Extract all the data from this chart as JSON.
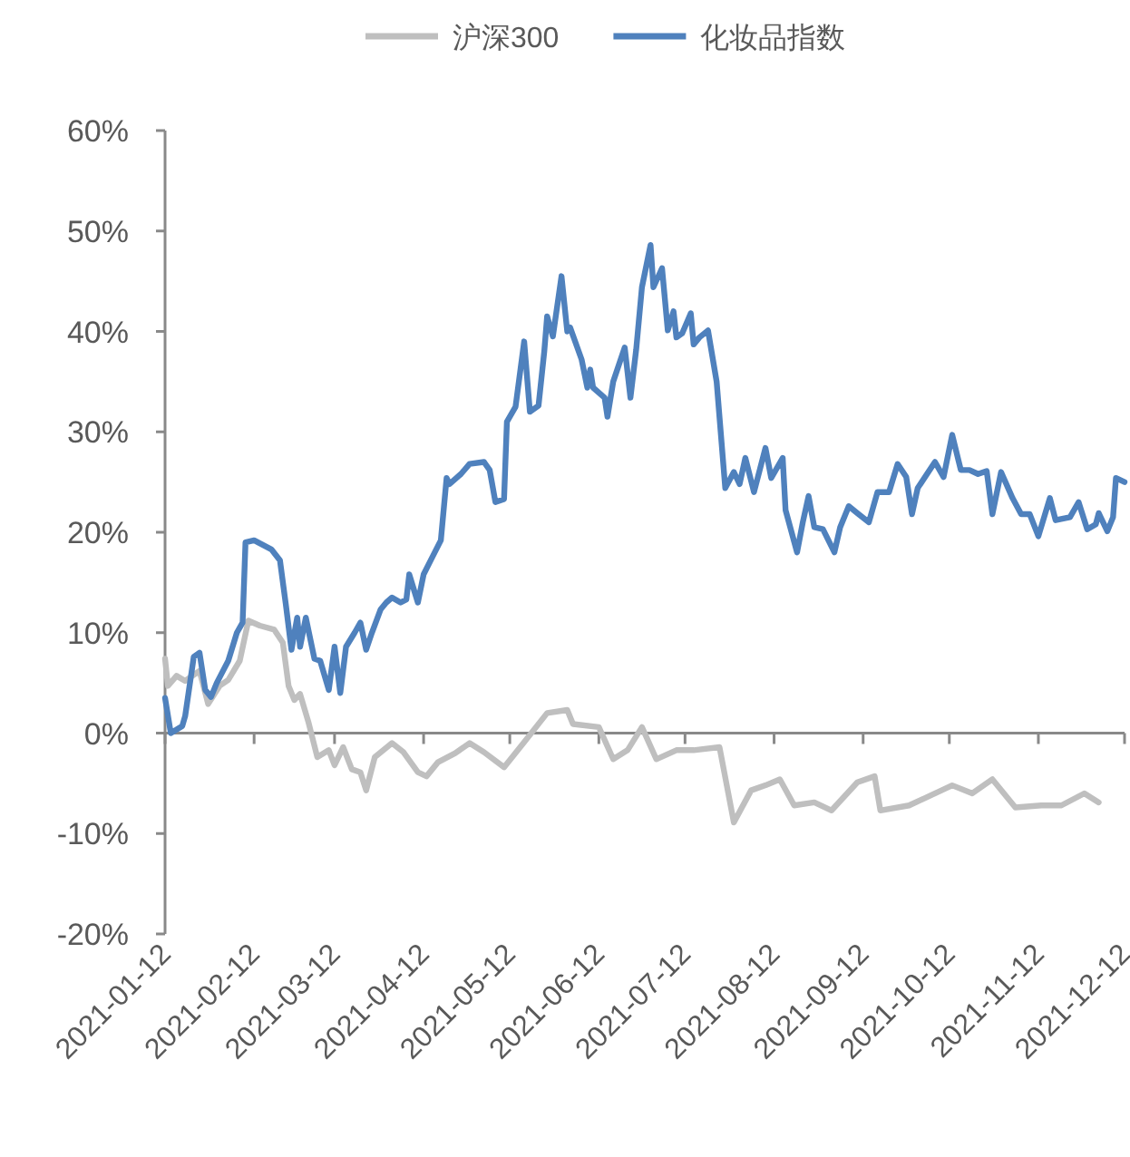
{
  "chart_data": {
    "type": "line",
    "legend": "top",
    "xlim": [
      "2021-01-12",
      "2021-12-12"
    ],
    "ylim": [
      -20,
      60
    ],
    "yticks": [
      {
        "value": -20,
        "label": "-20%"
      },
      {
        "value": -10,
        "label": "-10%"
      },
      {
        "value": 0,
        "label": "0%"
      },
      {
        "value": 10,
        "label": "10%"
      },
      {
        "value": 20,
        "label": "20%"
      },
      {
        "value": 30,
        "label": "30%"
      },
      {
        "value": 40,
        "label": "40%"
      },
      {
        "value": 50,
        "label": "50%"
      },
      {
        "value": 60,
        "label": "60%"
      }
    ],
    "xticks": [
      {
        "value": "2021-01-12",
        "label": "2021-01-12"
      },
      {
        "value": "2021-02-12",
        "label": "2021-02-12"
      },
      {
        "value": "2021-03-12",
        "label": "2021-03-12"
      },
      {
        "value": "2021-04-12",
        "label": "2021-04-12"
      },
      {
        "value": "2021-05-12",
        "label": "2021-05-12"
      },
      {
        "value": "2021-06-12",
        "label": "2021-06-12"
      },
      {
        "value": "2021-07-12",
        "label": "2021-07-12"
      },
      {
        "value": "2021-08-12",
        "label": "2021-08-12"
      },
      {
        "value": "2021-09-12",
        "label": "2021-09-12"
      },
      {
        "value": "2021-10-12",
        "label": "2021-10-12"
      },
      {
        "value": "2021-11-12",
        "label": "2021-11-12"
      },
      {
        "value": "2021-12-12",
        "label": "2021-12-12"
      }
    ],
    "series": [
      {
        "name": "沪深300",
        "color": "#bfbfbf",
        "x": [
          "2021-01-12",
          "2021-01-13",
          "2021-01-16",
          "2021-01-19",
          "2021-01-24",
          "2021-01-27",
          "2021-01-31",
          "2021-02-03",
          "2021-02-07",
          "2021-02-10",
          "2021-02-14",
          "2021-02-19",
          "2021-02-22",
          "2021-02-24",
          "2021-02-26",
          "2021-02-28",
          "2021-03-03",
          "2021-03-06",
          "2021-03-10",
          "2021-03-12",
          "2021-03-15",
          "2021-03-18",
          "2021-03-21",
          "2021-03-23",
          "2021-03-26",
          "2021-04-01",
          "2021-04-05",
          "2021-04-10",
          "2021-04-13",
          "2021-04-17",
          "2021-04-23",
          "2021-04-28",
          "2021-05-03",
          "2021-05-10",
          "2021-05-17",
          "2021-05-25",
          "2021-06-01",
          "2021-06-03",
          "2021-06-12",
          "2021-06-17",
          "2021-06-22",
          "2021-06-27",
          "2021-07-02",
          "2021-07-09",
          "2021-07-15",
          "2021-07-24",
          "2021-07-29",
          "2021-08-04",
          "2021-08-09",
          "2021-08-14",
          "2021-08-19",
          "2021-08-26",
          "2021-09-01",
          "2021-09-10",
          "2021-09-16",
          "2021-09-18",
          "2021-09-28",
          "2021-10-13",
          "2021-10-20",
          "2021-10-27",
          "2021-11-04",
          "2021-11-13",
          "2021-11-20",
          "2021-11-28",
          "2021-12-03"
        ],
        "values": [
          7.4,
          4.7,
          5.7,
          5.2,
          6.2,
          2.9,
          4.7,
          5.3,
          7.2,
          11.2,
          10.7,
          10.3,
          9,
          4.7,
          3.3,
          3.9,
          1,
          -2.4,
          -1.7,
          -3.2,
          -1.4,
          -3.6,
          -3.9,
          -5.7,
          -2.4,
          -1,
          -1.9,
          -3.9,
          -4.3,
          -2.9,
          -2,
          -1,
          -1.9,
          -3.4,
          -0.9,
          2,
          2.3,
          0.9,
          0.6,
          -2.6,
          -1.7,
          0.6,
          -2.6,
          -1.7,
          -1.7,
          -1.4,
          -8.9,
          -5.7,
          -5.2,
          -4.6,
          -7.2,
          -6.9,
          -7.7,
          -4.9,
          -4.3,
          -7.7,
          -7.2,
          -5.2,
          -6,
          -4.6,
          -7.4,
          -7.2,
          -7.2,
          -6,
          -6.9
        ]
      },
      {
        "name": "化妆品指数",
        "color": "#4f81bd",
        "x": [
          "2021-01-12",
          "2021-01-14",
          "2021-01-18",
          "2021-01-19",
          "2021-01-22",
          "2021-01-24",
          "2021-01-26",
          "2021-01-28",
          "2021-01-30",
          "2021-02-03",
          "2021-02-06",
          "2021-02-08",
          "2021-02-09",
          "2021-02-12",
          "2021-02-18",
          "2021-02-21",
          "2021-02-23",
          "2021-02-25",
          "2021-02-27",
          "2021-02-28",
          "2021-03-02",
          "2021-03-05",
          "2021-03-07",
          "2021-03-10",
          "2021-03-12",
          "2021-03-14",
          "2021-03-16",
          "2021-03-19",
          "2021-03-21",
          "2021-03-23",
          "2021-03-25",
          "2021-03-28",
          "2021-03-30",
          "2021-04-01",
          "2021-04-04",
          "2021-04-06",
          "2021-04-07",
          "2021-04-10",
          "2021-04-12",
          "2021-04-15",
          "2021-04-18",
          "2021-04-20",
          "2021-04-21",
          "2021-04-25",
          "2021-04-28",
          "2021-05-03",
          "2021-05-05",
          "2021-05-07",
          "2021-05-10",
          "2021-05-11",
          "2021-05-14",
          "2021-05-17",
          "2021-05-19",
          "2021-05-22",
          "2021-05-24",
          "2021-05-25",
          "2021-05-27",
          "2021-05-30",
          "2021-06-01",
          "2021-06-02",
          "2021-06-06",
          "2021-06-08",
          "2021-06-09",
          "2021-06-10",
          "2021-06-14",
          "2021-06-15",
          "2021-06-17",
          "2021-06-21",
          "2021-06-23",
          "2021-06-25",
          "2021-06-27",
          "2021-06-30",
          "2021-07-01",
          "2021-07-04",
          "2021-07-06",
          "2021-07-08",
          "2021-07-09",
          "2021-07-11",
          "2021-07-14",
          "2021-07-15",
          "2021-07-17",
          "2021-07-20",
          "2021-07-23",
          "2021-07-26",
          "2021-07-29",
          "2021-07-31",
          "2021-08-02",
          "2021-08-05",
          "2021-08-09",
          "2021-08-11",
          "2021-08-15",
          "2021-08-16",
          "2021-08-20",
          "2021-08-22",
          "2021-08-24",
          "2021-08-26",
          "2021-08-29",
          "2021-09-02",
          "2021-09-04",
          "2021-09-07",
          "2021-09-10",
          "2021-09-14",
          "2021-09-17",
          "2021-09-21",
          "2021-09-24",
          "2021-09-27",
          "2021-09-29",
          "2021-10-01",
          "2021-10-07",
          "2021-10-10",
          "2021-10-13",
          "2021-10-16",
          "2021-10-19",
          "2021-10-22",
          "2021-10-25",
          "2021-10-27",
          "2021-10-30",
          "2021-11-03",
          "2021-11-06",
          "2021-11-09",
          "2021-11-12",
          "2021-11-16",
          "2021-11-18",
          "2021-11-23",
          "2021-11-26",
          "2021-11-29",
          "2021-12-02",
          "2021-12-03",
          "2021-12-06",
          "2021-12-08",
          "2021-12-09",
          "2021-12-12"
        ],
        "values": [
          3.5,
          0,
          0.7,
          1.7,
          7.6,
          8,
          4.3,
          3.6,
          5,
          7.2,
          10,
          11,
          19,
          19.2,
          18.3,
          17.2,
          12.9,
          8.3,
          11.5,
          8.6,
          11.5,
          7.4,
          7.2,
          4.3,
          8.6,
          4,
          8.6,
          10,
          11,
          8.3,
          10,
          12.3,
          13,
          13.5,
          13,
          13.3,
          15.8,
          13,
          15.8,
          17.5,
          19.2,
          25.4,
          24.8,
          25.8,
          26.8,
          27,
          26.2,
          23,
          23.3,
          31,
          32.5,
          39,
          32,
          32.6,
          38,
          41.5,
          39.5,
          45.5,
          40,
          40.4,
          37.2,
          34.4,
          36.2,
          34.4,
          33.4,
          31.5,
          35,
          38.4,
          33.4,
          38.2,
          44.4,
          48.6,
          44.4,
          46.3,
          40.1,
          42,
          39.4,
          39.8,
          41.8,
          38.7,
          39.4,
          40.1,
          35,
          24.4,
          26,
          24.8,
          27.4,
          24,
          28.4,
          25.4,
          27.4,
          22.2,
          18,
          21,
          23.6,
          20.5,
          20.3,
          18,
          20.5,
          22.6,
          21.9,
          21,
          24,
          24,
          26.8,
          25.5,
          21.8,
          24.4,
          27,
          25.5,
          29.7,
          26.2,
          26.2,
          25.8,
          26.1,
          21.8,
          26,
          23.4,
          21.8,
          21.8,
          19.6,
          23.4,
          21.2,
          21.5,
          23,
          20.3,
          20.8,
          21.9,
          20.1,
          21.5,
          25.4,
          25
        ]
      }
    ]
  }
}
